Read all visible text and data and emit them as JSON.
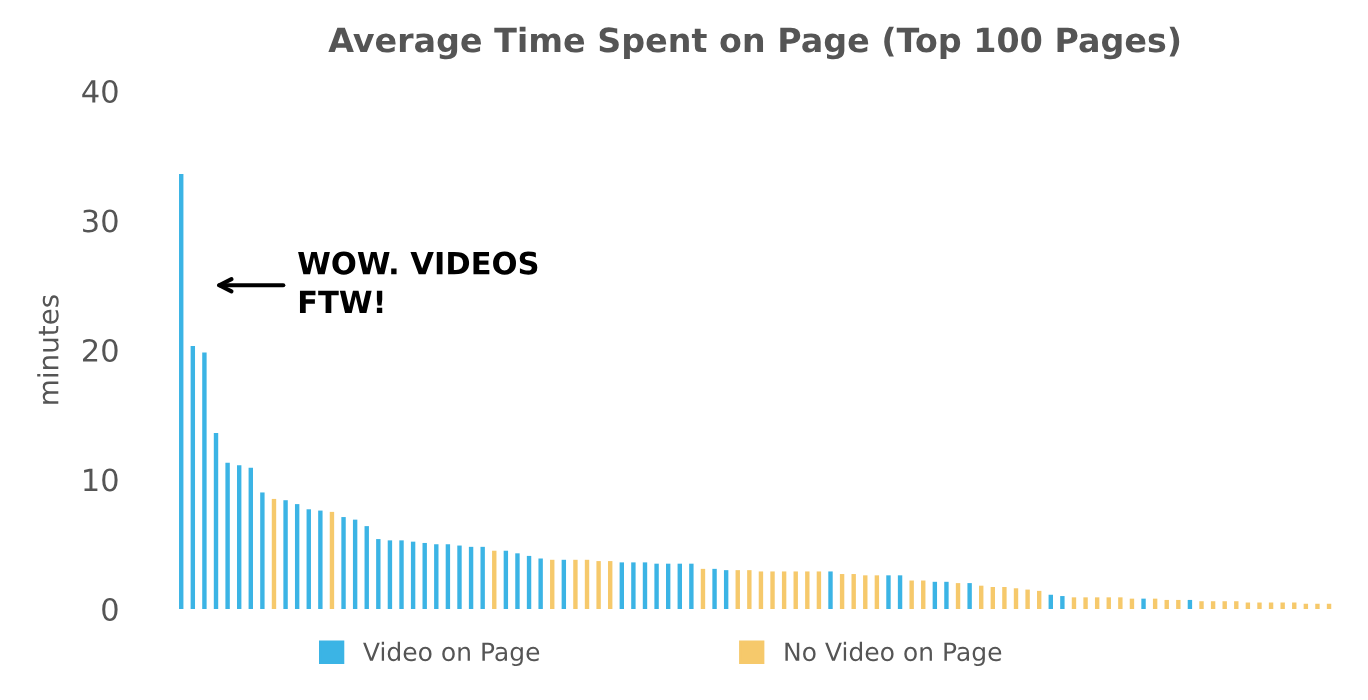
{
  "chart_data": {
    "type": "bar",
    "title": "Average Time Spent on Page (Top 100 Pages)",
    "ylabel": "minutes",
    "stacked": true,
    "categories": [
      null,
      null,
      null,
      null,
      null,
      null,
      null,
      null,
      null,
      null,
      null,
      null,
      null,
      null,
      null,
      null,
      null,
      null,
      null,
      null,
      null,
      null,
      null,
      null,
      null,
      null,
      null,
      null,
      null,
      null,
      null,
      null,
      null,
      null,
      null,
      null,
      null,
      null,
      null,
      null,
      null,
      null,
      null,
      null,
      null,
      null,
      null,
      null,
      null,
      null,
      null,
      null,
      null,
      null,
      null,
      null,
      null,
      null,
      null,
      null,
      null,
      null,
      null,
      null,
      null,
      null,
      null,
      null,
      null,
      null,
      null,
      null,
      null,
      null,
      null,
      null,
      null,
      null,
      null,
      null,
      null,
      null,
      null,
      null,
      null,
      null,
      null,
      null,
      null,
      null,
      null,
      null,
      null,
      null,
      null,
      null,
      null,
      null,
      null,
      null
    ],
    "series": [
      {
        "name": "Video on Page",
        "color": "#3bb4e5",
        "values": [
          33.6,
          20.3,
          19.8,
          13.6,
          11.3,
          11.1,
          10.9,
          9.0,
          0,
          8.4,
          8.1,
          7.7,
          7.6,
          0,
          7.1,
          6.9,
          6.4,
          5.4,
          5.3,
          5.3,
          5.2,
          5.1,
          5.0,
          5.0,
          4.9,
          4.8,
          4.8,
          0,
          4.5,
          4.3,
          4.1,
          3.9,
          0,
          3.8,
          0,
          0,
          0,
          0,
          3.6,
          3.6,
          3.6,
          3.5,
          3.5,
          3.5,
          3.5,
          0,
          3.1,
          3.0,
          0,
          0,
          0,
          0,
          0,
          0,
          0,
          0,
          2.9,
          0,
          0,
          0,
          0,
          2.6,
          2.6,
          0,
          0,
          2.1,
          2.1,
          0,
          2.0,
          0,
          0,
          0,
          0,
          0,
          0,
          1.1,
          1.0,
          0,
          0,
          0,
          0,
          0,
          0,
          0.8,
          0,
          0,
          0,
          0.7,
          0,
          0,
          0,
          0,
          0,
          0,
          0,
          0,
          0,
          0,
          0,
          0
        ]
      },
      {
        "name": "No Video on Page",
        "color": "#f6c96b",
        "values": [
          0,
          0,
          0,
          0,
          0,
          0,
          0,
          0,
          8.5,
          0,
          0,
          0,
          0,
          7.5,
          0,
          0,
          0,
          0,
          0,
          0,
          0,
          0,
          0,
          0,
          0,
          0,
          0,
          4.5,
          0,
          0,
          0,
          0,
          3.8,
          0,
          3.8,
          3.8,
          3.7,
          3.7,
          0,
          0,
          0,
          0,
          0,
          0,
          0,
          3.1,
          0,
          0,
          3.0,
          3.0,
          2.9,
          2.9,
          2.9,
          2.9,
          2.9,
          2.9,
          0,
          2.7,
          2.7,
          2.6,
          2.6,
          0,
          0,
          2.2,
          2.2,
          0,
          0,
          2.0,
          0,
          1.8,
          1.7,
          1.7,
          1.6,
          1.5,
          1.4,
          0,
          0,
          0.9,
          0.9,
          0.9,
          0.9,
          0.9,
          0.8,
          0,
          0.8,
          0.7,
          0.7,
          0,
          0.6,
          0.6,
          0.6,
          0.6,
          0.5,
          0.5,
          0.5,
          0.5,
          0.5,
          0.4,
          0.4,
          0.4
        ]
      }
    ],
    "ylim": [
      0,
      40
    ],
    "yticks": [
      0,
      10,
      20,
      30,
      40
    ],
    "grid": false,
    "legend": "bottom",
    "tick_labels": "y",
    "annotations": [
      "WOW. VIDEOS\nFTW!"
    ]
  }
}
